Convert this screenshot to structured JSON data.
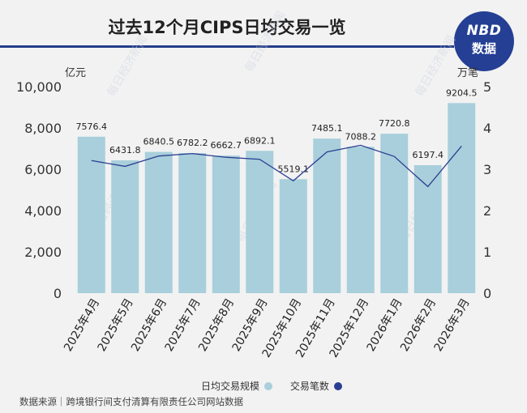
{
  "title": "过去12个月CIPS日均交易一览",
  "logo": {
    "line1": "NBD",
    "line2": "数据"
  },
  "watermark": "每日经济新闻",
  "source": "数据来源｜跨境银行间支付清算有限责任公司网站数据",
  "chart_data": {
    "type": "bar",
    "title": "过去12个月CIPS日均交易一览",
    "categories": [
      "2025年4月",
      "2025年5月",
      "2025年6月",
      "2025年7月",
      "2025年8月",
      "2025年9月",
      "2025年10月",
      "2025年11月",
      "2025年12月",
      "2026年1月",
      "2026年2月",
      "2026年3月"
    ],
    "series": [
      {
        "name": "日均交易规模",
        "type": "bar",
        "axis": "left",
        "color": "#a8cfdb",
        "values": [
          7576.4,
          6431.8,
          6840.5,
          6782.2,
          6662.7,
          6892.1,
          5519.1,
          7485.1,
          7088.2,
          7720.8,
          6197.4,
          9204.5
        ]
      },
      {
        "name": "交易笔数",
        "type": "line",
        "axis": "right",
        "color": "#2b3f92",
        "values": [
          3.21,
          3.07,
          3.32,
          3.38,
          3.29,
          3.24,
          2.72,
          3.42,
          3.58,
          3.31,
          2.58,
          3.56
        ]
      }
    ],
    "y_left": {
      "unit": "亿元",
      "min": 0,
      "max": 10000,
      "ticks": [
        "0",
        "2,000",
        "4,000",
        "6,000",
        "8,000",
        "10,000"
      ]
    },
    "y_right": {
      "unit": "万笔",
      "min": 0,
      "max": 5,
      "ticks": [
        "0",
        "1",
        "2",
        "3",
        "4",
        "5"
      ]
    },
    "grid": false,
    "legend_position": "bottom"
  }
}
